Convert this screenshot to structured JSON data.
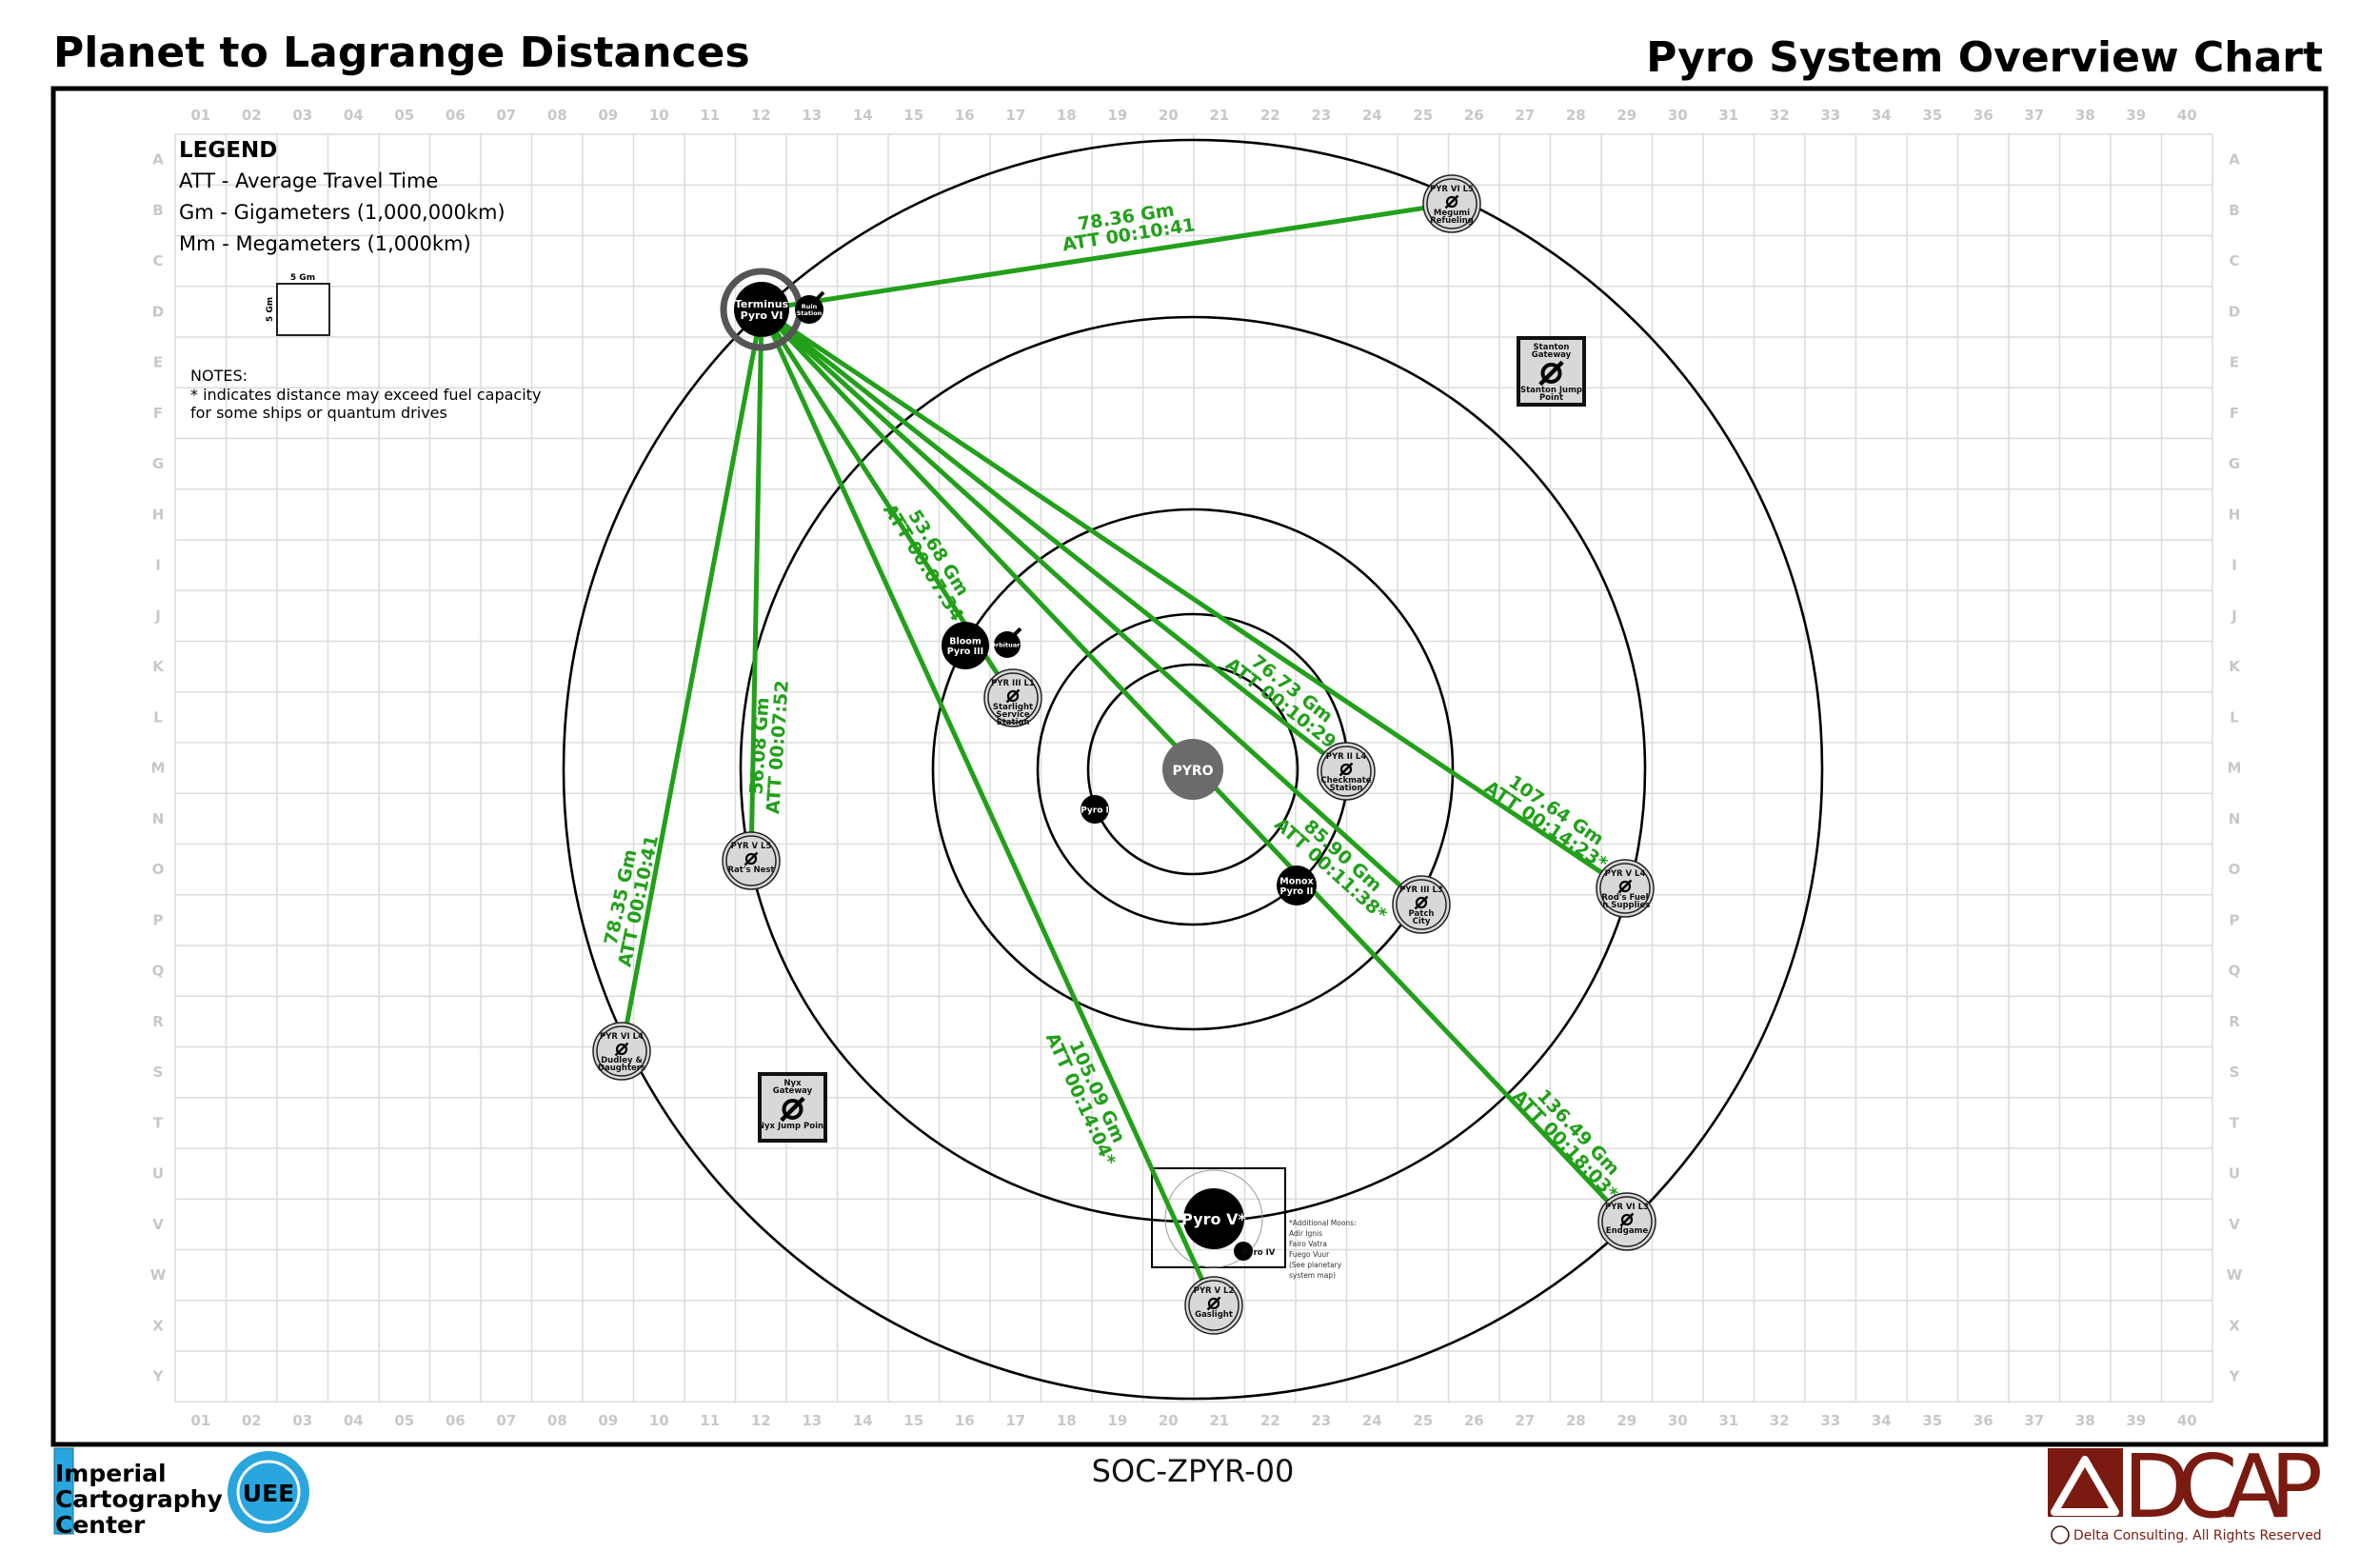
{
  "header": {
    "left_title": "Planet to Lagrange Distances",
    "right_title": "Pyro System Overview Chart"
  },
  "footer": {
    "code": "SOC-ZPYR-00"
  },
  "grid": {
    "columns": [
      "01",
      "02",
      "03",
      "04",
      "05",
      "06",
      "07",
      "08",
      "09",
      "10",
      "11",
      "12",
      "13",
      "14",
      "15",
      "16",
      "17",
      "18",
      "19",
      "20",
      "21",
      "22",
      "23",
      "24",
      "25",
      "26",
      "27",
      "28",
      "29",
      "30",
      "31",
      "32",
      "33",
      "34",
      "35",
      "36",
      "37",
      "38",
      "39",
      "40"
    ],
    "rows": [
      "A",
      "B",
      "C",
      "D",
      "E",
      "F",
      "G",
      "H",
      "I",
      "J",
      "K",
      "L",
      "M",
      "N",
      "O",
      "P",
      "Q",
      "R",
      "S",
      "T",
      "U",
      "V",
      "W",
      "X",
      "Y"
    ]
  },
  "legend": {
    "title": "LEGEND",
    "items": [
      "ATT - Average Travel Time",
      "Gm - Gigameters (1,000,000km)",
      "Mm - Megameters (1,000km)"
    ],
    "scale_label": "5 Gm",
    "notes_title": "NOTES:",
    "notes": [
      "* indicates distance may exceed fuel capacity",
      "for some ships or quantum drives"
    ]
  },
  "star": {
    "name": "PYRO"
  },
  "planets": [
    {
      "lines": [
        "Terminus",
        "Pyro VI"
      ]
    },
    {
      "lines": [
        "Bloom",
        "Pyro III"
      ]
    },
    {
      "lines": [
        "Monox",
        "Pyro II"
      ]
    },
    {
      "lines": [
        "Pyro I"
      ]
    },
    {
      "lines": [
        "Pyro V*"
      ]
    },
    {
      "lines": [
        "Pyro IV"
      ]
    }
  ],
  "moons": [
    {
      "lines": [
        "Ruin",
        "Station"
      ]
    },
    {
      "lines": [
        "Orbituary"
      ]
    }
  ],
  "pyro_v_note": [
    "*Additional Moons:",
    "Adir        Ignis",
    "Fairo       Vatra",
    "Fuego      Vuur",
    "(See planetary",
    "system map)"
  ],
  "stations": [
    {
      "designation": "PYR VI L5",
      "name": [
        "Megumi",
        "Refueling"
      ]
    },
    {
      "designation": "PYR III L1",
      "name": [
        "Starlight",
        "Service",
        "Station"
      ]
    },
    {
      "designation": "PYR II L4",
      "name": [
        "Checkmate",
        "Station"
      ]
    },
    {
      "designation": "PYR III L3",
      "name": [
        "Patch",
        "City"
      ]
    },
    {
      "designation": "PYR V L4",
      "name": [
        "Rod's Fuel",
        "'n Supplies"
      ]
    },
    {
      "designation": "PYR V L5",
      "name": [
        "Rat's Nest"
      ]
    },
    {
      "designation": "PYR VI L4",
      "name": [
        "Dudley &",
        "Daughters"
      ]
    },
    {
      "designation": "PYR VI L3",
      "name": [
        "Endgame"
      ]
    },
    {
      "designation": "PYR V L2",
      "name": [
        "Gaslight"
      ]
    }
  ],
  "jump_points": [
    {
      "title": [
        "Stanton",
        "Gateway"
      ],
      "footer": [
        "Stanton Jump",
        "Point"
      ]
    },
    {
      "title": [
        "Nyx",
        "Gateway"
      ],
      "footer": [
        "Nyx Jump Point"
      ]
    }
  ],
  "routes": [
    {
      "from": "Terminus",
      "to": "Megumi Refueling",
      "distance": "78.36 Gm",
      "att": "ATT 00:10:41"
    },
    {
      "from": "Terminus",
      "to": "Starlight Service Station",
      "distance": "53.68 Gm",
      "att": "ATT 00:07:34"
    },
    {
      "from": "Terminus",
      "to": "Checkmate Station",
      "distance": "76.73 Gm",
      "att": "ATT 00:10:29"
    },
    {
      "from": "Terminus",
      "to": "Patch City",
      "distance": "85.90 Gm",
      "att": "ATT 00:11:38*"
    },
    {
      "from": "Terminus",
      "to": "Rod's Fuel 'n Supplies",
      "distance": "107.64 Gm",
      "att": "ATT 00:14:23*"
    },
    {
      "from": "Terminus",
      "to": "Rat's Nest",
      "distance": "56.08 Gm",
      "att": "ATT 00:07:52"
    },
    {
      "from": "Terminus",
      "to": "Dudley & Daughters",
      "distance": "78.35 Gm",
      "att": "ATT 00:10:41"
    },
    {
      "from": "Terminus",
      "to": "Endgame",
      "distance": "136.49 Gm",
      "att": "ATT 00:18:03*"
    },
    {
      "from": "Terminus",
      "to": "Gaslight",
      "distance": "105.09 Gm",
      "att": "ATT 00:14:04*"
    }
  ],
  "logos": {
    "icc": {
      "lines": [
        "Imperial",
        "Cartography",
        "Center"
      ],
      "emblem": "UEE"
    },
    "dcap": {
      "wordmark": "DCAP",
      "copyright": "Delta Consulting.  All Rights Reserved"
    }
  },
  "colors": {
    "route": "#22a01a",
    "star": "#6b6b6b",
    "station_fill": "#d8d8d8",
    "icc_blue": "#2aa6de",
    "dcap_maroon": "#7a1a10",
    "grid": "#dcdcdc"
  }
}
